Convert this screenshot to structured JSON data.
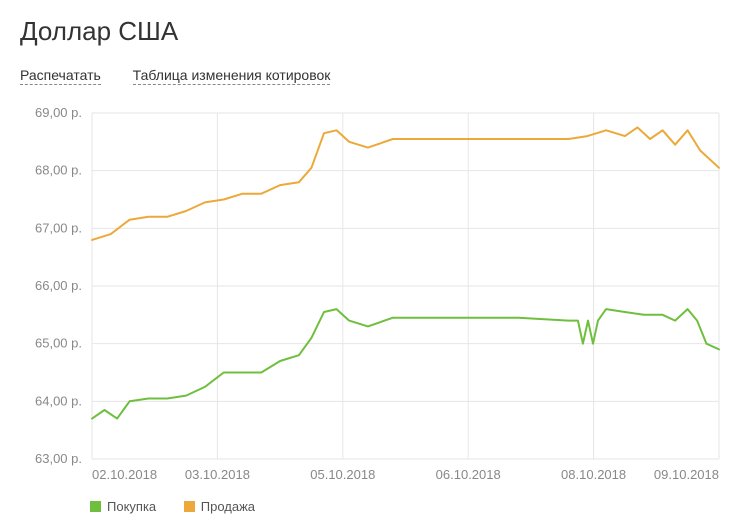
{
  "title": "Доллар США",
  "links": {
    "print": "Распечатать",
    "table": "Таблица изменения котировок"
  },
  "chart": {
    "type": "line",
    "background_color": "#ffffff",
    "grid_color": "#e6e6e6",
    "axis_label_color": "#888888",
    "axis_label_fontsize": 13,
    "ylim": [
      63.0,
      69.0
    ],
    "ytick_step": 1.0,
    "y_suffix": " р.",
    "yticks": [
      "63,00 р.",
      "64,00 р.",
      "65,00 р.",
      "66,00 р.",
      "67,00 р.",
      "68,00 р.",
      "69,00 р."
    ],
    "xticks": [
      {
        "pos": 0.0,
        "label": "02.10.2018"
      },
      {
        "pos": 0.2,
        "label": "03.10.2018"
      },
      {
        "pos": 0.4,
        "label": "05.10.2018"
      },
      {
        "pos": 0.6,
        "label": "06.10.2018"
      },
      {
        "pos": 0.8,
        "label": "08.10.2018"
      },
      {
        "pos": 1.0,
        "label": "09.10.2018"
      }
    ],
    "series": [
      {
        "name": "Продажа",
        "color": "#eca939",
        "line_width": 2,
        "points": [
          [
            0.0,
            66.8
          ],
          [
            0.03,
            66.9
          ],
          [
            0.06,
            67.15
          ],
          [
            0.09,
            67.2
          ],
          [
            0.12,
            67.2
          ],
          [
            0.15,
            67.3
          ],
          [
            0.18,
            67.45
          ],
          [
            0.21,
            67.5
          ],
          [
            0.24,
            67.6
          ],
          [
            0.27,
            67.6
          ],
          [
            0.3,
            67.75
          ],
          [
            0.33,
            67.8
          ],
          [
            0.35,
            68.05
          ],
          [
            0.37,
            68.65
          ],
          [
            0.39,
            68.7
          ],
          [
            0.41,
            68.5
          ],
          [
            0.44,
            68.4
          ],
          [
            0.48,
            68.55
          ],
          [
            0.54,
            68.55
          ],
          [
            0.6,
            68.55
          ],
          [
            0.68,
            68.55
          ],
          [
            0.76,
            68.55
          ],
          [
            0.79,
            68.6
          ],
          [
            0.82,
            68.7
          ],
          [
            0.85,
            68.6
          ],
          [
            0.87,
            68.75
          ],
          [
            0.89,
            68.55
          ],
          [
            0.91,
            68.7
          ],
          [
            0.93,
            68.45
          ],
          [
            0.95,
            68.7
          ],
          [
            0.97,
            68.35
          ],
          [
            1.0,
            68.05
          ]
        ]
      },
      {
        "name": "Покупка",
        "color": "#6fbf3f",
        "line_width": 2,
        "points": [
          [
            0.0,
            63.7
          ],
          [
            0.02,
            63.85
          ],
          [
            0.04,
            63.7
          ],
          [
            0.06,
            64.0
          ],
          [
            0.09,
            64.05
          ],
          [
            0.12,
            64.05
          ],
          [
            0.15,
            64.1
          ],
          [
            0.18,
            64.25
          ],
          [
            0.21,
            64.5
          ],
          [
            0.24,
            64.5
          ],
          [
            0.27,
            64.5
          ],
          [
            0.3,
            64.7
          ],
          [
            0.33,
            64.8
          ],
          [
            0.35,
            65.1
          ],
          [
            0.37,
            65.55
          ],
          [
            0.39,
            65.6
          ],
          [
            0.41,
            65.4
          ],
          [
            0.44,
            65.3
          ],
          [
            0.48,
            65.45
          ],
          [
            0.54,
            65.45
          ],
          [
            0.6,
            65.45
          ],
          [
            0.68,
            65.45
          ],
          [
            0.76,
            65.4
          ],
          [
            0.775,
            65.4
          ],
          [
            0.783,
            65.0
          ],
          [
            0.791,
            65.4
          ],
          [
            0.799,
            65.0
          ],
          [
            0.807,
            65.4
          ],
          [
            0.82,
            65.6
          ],
          [
            0.85,
            65.55
          ],
          [
            0.88,
            65.5
          ],
          [
            0.91,
            65.5
          ],
          [
            0.93,
            65.4
          ],
          [
            0.95,
            65.6
          ],
          [
            0.965,
            65.4
          ],
          [
            0.98,
            65.0
          ],
          [
            1.0,
            64.9
          ]
        ]
      }
    ]
  },
  "legend": [
    {
      "label": "Покупка",
      "color": "#6fbf3f"
    },
    {
      "label": "Продажа",
      "color": "#eca939"
    }
  ]
}
